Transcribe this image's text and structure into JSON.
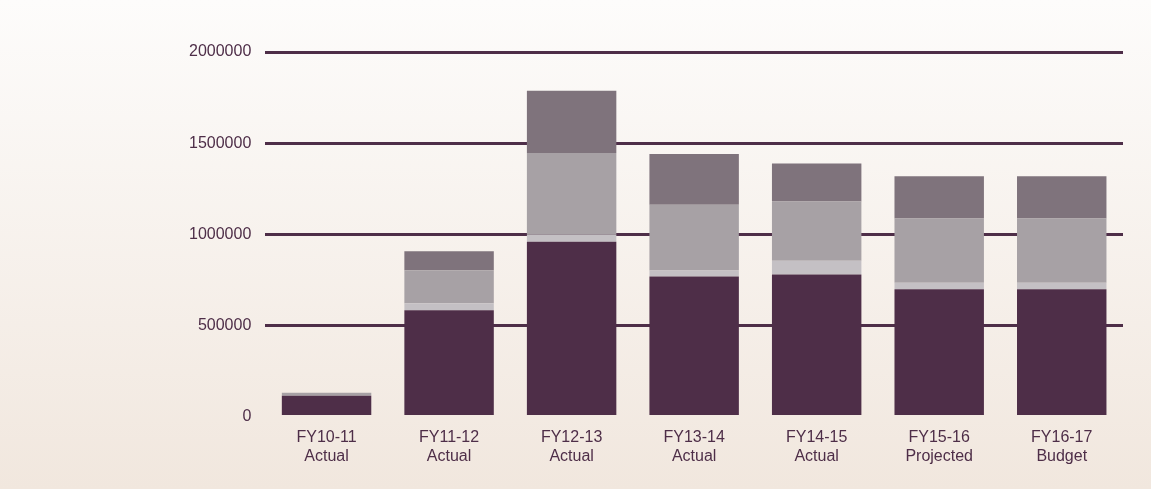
{
  "chart_data": {
    "type": "bar",
    "stacked": true,
    "categories": [
      "FY10-11\nActual",
      "FY11-12\nActual",
      "FY12-13\nActual",
      "FY13-14\nActual",
      "FY14-15\nActual",
      "FY15-16\nProjected",
      "FY16-17\nBudget"
    ],
    "series": [
      {
        "color": "#4e2e48",
        "values": [
          114000,
          583000,
          959000,
          768000,
          780000,
          699000,
          699000
        ]
      },
      {
        "color": "#c4c0c4",
        "values": [
          0,
          39000,
          39000,
          33000,
          75000,
          35000,
          35000
        ]
      },
      {
        "color": "#a7a1a5",
        "values": [
          17000,
          181000,
          448000,
          361000,
          325000,
          353000,
          353000
        ]
      },
      {
        "color": "#7f737c",
        "values": [
          0,
          104000,
          342000,
          278000,
          208000,
          232000,
          232000
        ]
      }
    ],
    "ylim": [
      0,
      2000000
    ],
    "yticks": [
      0,
      500000,
      1000000,
      1500000,
      2000000
    ],
    "grid": "y",
    "legend": false
  }
}
